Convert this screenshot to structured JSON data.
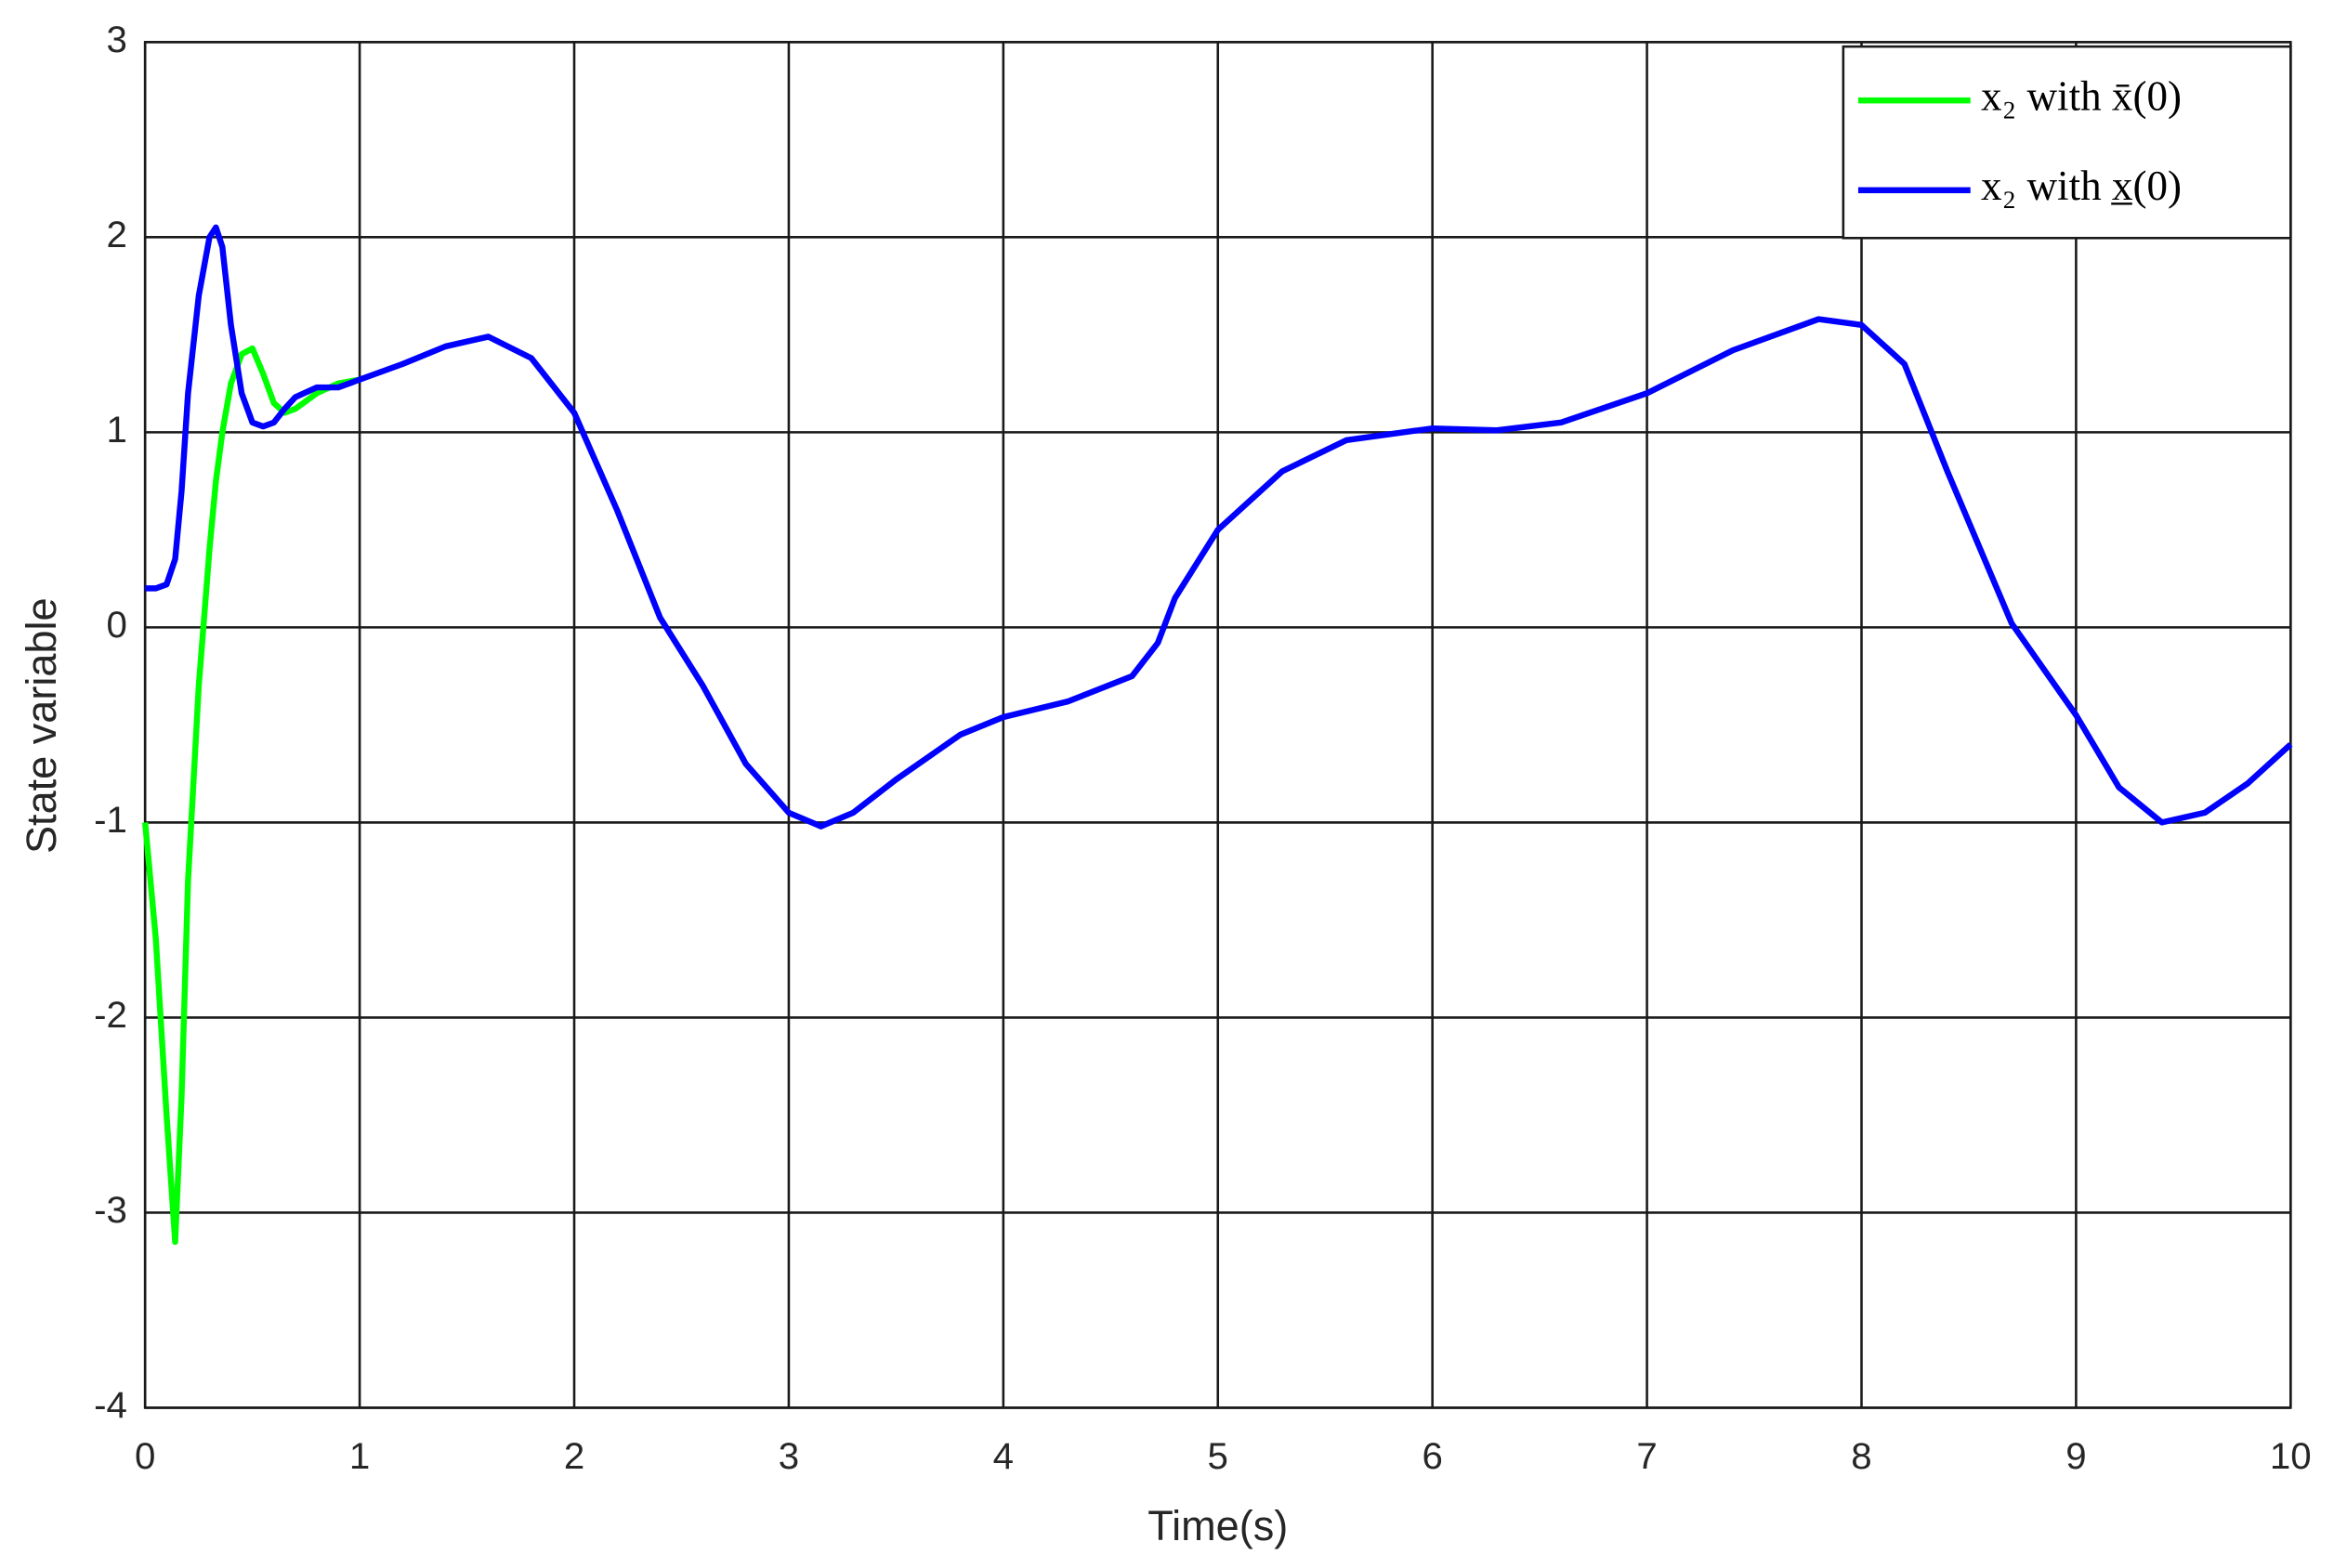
{
  "chart_data": {
    "type": "line",
    "xlabel": "Time(s)",
    "ylabel": "State variable",
    "x": [
      0,
      0.05,
      0.1,
      0.14,
      0.17,
      0.2,
      0.25,
      0.3,
      0.33,
      0.36,
      0.4,
      0.45,
      0.5,
      0.55,
      0.6,
      0.65,
      0.7,
      0.8,
      0.9,
      1,
      1.2,
      1.4,
      1.6,
      1.8,
      2,
      2.2,
      2.4,
      2.6,
      2.8,
      3,
      3.15,
      3.3,
      3.5,
      3.8,
      4,
      4.3,
      4.6,
      4.72,
      4.8,
      5,
      5.3,
      5.6,
      6,
      6.3,
      6.6,
      7,
      7.4,
      7.8,
      8,
      8.2,
      8.4,
      8.7,
      9,
      9.2,
      9.4,
      9.6,
      9.8,
      10
    ],
    "series": [
      {
        "name": "x₂ with x̄(0)",
        "color": "#00ff00",
        "values": [
          -1,
          -1.6,
          -2.5,
          -3.15,
          -2.4,
          -1.3,
          -0.3,
          0.4,
          0.75,
          1.0,
          1.25,
          1.4,
          1.43,
          1.3,
          1.15,
          1.1,
          1.12,
          1.2,
          1.25,
          1.27,
          null,
          null,
          null,
          null,
          null,
          null,
          null,
          null,
          null,
          null,
          null,
          null,
          null,
          null,
          null,
          null,
          null,
          null,
          null,
          null,
          null,
          null,
          null,
          null,
          null,
          null,
          null,
          null,
          null,
          null,
          null,
          null,
          null,
          null,
          null,
          null,
          null,
          null
        ]
      },
      {
        "name": "x₂ with x̲(0)",
        "color": "#0000ff",
        "values": [
          0.2,
          0.2,
          0.22,
          0.35,
          0.7,
          1.2,
          1.7,
          2.0,
          2.05,
          1.95,
          1.55,
          1.2,
          1.05,
          1.03,
          1.05,
          1.12,
          1.18,
          1.23,
          1.23,
          1.27,
          1.35,
          1.44,
          1.49,
          1.38,
          1.1,
          0.6,
          0.05,
          -0.3,
          -0.7,
          -0.95,
          -1.02,
          -0.95,
          -0.78,
          -0.55,
          -0.46,
          -0.38,
          -0.25,
          -0.08,
          0.15,
          0.5,
          0.8,
          0.96,
          1.02,
          1.01,
          1.05,
          1.2,
          1.42,
          1.58,
          1.55,
          1.35,
          0.8,
          0.02,
          -0.45,
          -0.82,
          -1.0,
          -0.95,
          -0.8,
          -0.6
        ]
      }
    ],
    "xlim": [
      0,
      10
    ],
    "xticks": [
      0,
      1,
      2,
      3,
      4,
      5,
      6,
      7,
      8,
      9,
      10
    ],
    "ylim": [
      -4,
      3
    ],
    "yticks": [
      -4,
      -3,
      -2,
      -1,
      0,
      1,
      2,
      3
    ],
    "grid": true,
    "legend": "upper right"
  }
}
